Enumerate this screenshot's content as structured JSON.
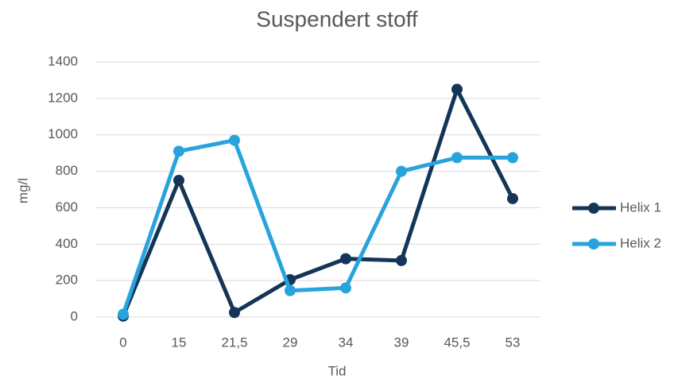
{
  "chart_data": {
    "type": "line",
    "title": "Suspendert stoff",
    "x_label": "Tid",
    "y_label": "mg/l",
    "categories": [
      "0",
      "15",
      "21,5",
      "29",
      "34",
      "39",
      "45,5",
      "53"
    ],
    "series": [
      {
        "name": "Helix 1",
        "color": "#143557",
        "values": [
          5,
          750,
          25,
          205,
          320,
          310,
          1250,
          650
        ]
      },
      {
        "name": "Helix 2",
        "color": "#29a3dc",
        "values": [
          15,
          910,
          970,
          145,
          160,
          800,
          875,
          875
        ]
      }
    ],
    "ylim": [
      0,
      1400
    ],
    "yticks": [
      0,
      200,
      400,
      600,
      800,
      1000,
      1200,
      1400
    ],
    "grid": true,
    "legend": "right"
  }
}
